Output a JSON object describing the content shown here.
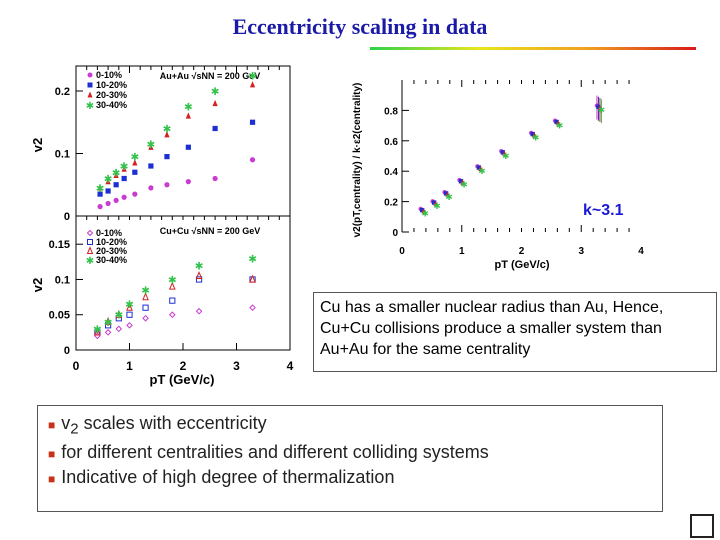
{
  "slide": {
    "title": "Eccentricity scaling in data",
    "note": "Cu has a smaller nuclear radius than Au, Hence, Cu+Cu collisions produce a smaller system than Au+Au for the same centrality",
    "bullets": [
      {
        "pre": "v",
        "sub": "2",
        "post": " scales with eccentricity"
      },
      {
        "pre": "for different centralities and different colliding systems",
        "sub": "",
        "post": ""
      },
      {
        "pre": "Indicative of high degree of thermalization",
        "sub": "",
        "post": ""
      }
    ],
    "k_label": "k~3.1",
    "colors": {
      "title": "#1a1aa6",
      "purple": "#c83ccf",
      "blue": "#1d2fd1",
      "red": "#d62020",
      "green": "#33c24a"
    }
  },
  "chart_data": [
    {
      "id": "auau",
      "type": "scatter",
      "system_label": "Au+Au √sNN = 200 GeV",
      "ylabel": "v2",
      "ylim": [
        0,
        0.24
      ],
      "xlim": [
        0,
        4
      ],
      "yticks": [
        "0",
        "0.1",
        "0.2"
      ],
      "yticks_values": [
        0,
        0.1,
        0.2
      ],
      "series": [
        {
          "name": "0-10%",
          "marker": "circle",
          "color": "#c83ccf",
          "x": [
            0.45,
            0.6,
            0.75,
            0.9,
            1.1,
            1.4,
            1.7,
            2.1,
            2.6,
            3.3
          ],
          "y": [
            0.015,
            0.02,
            0.025,
            0.03,
            0.035,
            0.045,
            0.05,
            0.055,
            0.06,
            0.09
          ]
        },
        {
          "name": "10-20%",
          "marker": "square",
          "color": "#1d2fd1",
          "x": [
            0.45,
            0.6,
            0.75,
            0.9,
            1.1,
            1.4,
            1.7,
            2.1,
            2.6,
            3.3
          ],
          "y": [
            0.035,
            0.04,
            0.05,
            0.06,
            0.07,
            0.08,
            0.095,
            0.11,
            0.14,
            0.15
          ]
        },
        {
          "name": "20-30%",
          "marker": "triangle",
          "color": "#d62020",
          "x": [
            0.45,
            0.6,
            0.75,
            0.9,
            1.1,
            1.4,
            1.7,
            2.1,
            2.6,
            3.3
          ],
          "y": [
            0.045,
            0.055,
            0.065,
            0.075,
            0.085,
            0.11,
            0.13,
            0.16,
            0.18,
            0.21
          ]
        },
        {
          "name": "30-40%",
          "marker": "star",
          "color": "#33c24a",
          "x": [
            0.45,
            0.6,
            0.75,
            0.9,
            1.1,
            1.4,
            1.7,
            2.1,
            2.6,
            3.3
          ],
          "y": [
            0.045,
            0.06,
            0.07,
            0.08,
            0.095,
            0.115,
            0.14,
            0.175,
            0.2,
            0.225
          ]
        }
      ]
    },
    {
      "id": "cucu",
      "type": "scatter",
      "system_label": "Cu+Cu √sNN = 200 GeV",
      "ylabel": "v2",
      "xlabel": "pT (GeV/c)",
      "ylim": [
        0,
        0.19
      ],
      "xlim": [
        0,
        4
      ],
      "yticks": [
        "0",
        "0.05",
        "0.1",
        "0.15"
      ],
      "yticks_values": [
        0,
        0.05,
        0.1,
        0.15
      ],
      "xticks": [
        "0",
        "1",
        "2",
        "3",
        "4"
      ],
      "xticks_values": [
        0,
        1,
        2,
        3,
        4
      ],
      "series": [
        {
          "name": "0-10%",
          "marker": "open-diamond",
          "color": "#c83ccf",
          "x": [
            0.4,
            0.6,
            0.8,
            1.0,
            1.3,
            1.8,
            2.3,
            3.3
          ],
          "y": [
            0.02,
            0.025,
            0.03,
            0.035,
            0.045,
            0.05,
            0.055,
            0.06
          ]
        },
        {
          "name": "10-20%",
          "marker": "open-square",
          "color": "#1d2fd1",
          "x": [
            0.4,
            0.6,
            0.8,
            1.0,
            1.3,
            1.8,
            2.3,
            3.3
          ],
          "y": [
            0.025,
            0.035,
            0.045,
            0.05,
            0.06,
            0.07,
            0.1,
            0.1
          ]
        },
        {
          "name": "20-30%",
          "marker": "open-triangle",
          "color": "#d62020",
          "x": [
            0.4,
            0.6,
            0.8,
            1.0,
            1.3,
            1.8,
            2.3,
            3.3
          ],
          "y": [
            0.025,
            0.04,
            0.05,
            0.06,
            0.075,
            0.09,
            0.105,
            0.1
          ]
        },
        {
          "name": "30-40%",
          "marker": "star",
          "color": "#33c24a",
          "x": [
            0.4,
            0.6,
            0.8,
            1.0,
            1.3,
            1.8,
            2.3,
            3.3
          ],
          "y": [
            0.03,
            0.04,
            0.05,
            0.065,
            0.085,
            0.1,
            0.12,
            0.13
          ]
        }
      ]
    },
    {
      "id": "scaled",
      "type": "scatter",
      "ylabel": "v2(pT,centrality) / k·ε2(centrality)",
      "xlabel": "pT (GeV/c)",
      "xlim": [
        0,
        4
      ],
      "ylim": [
        0,
        1.0
      ],
      "yticks": [
        "0",
        "0.2",
        "0.4",
        "0.6",
        "0.8"
      ],
      "yticks_values": [
        0,
        0.2,
        0.4,
        0.6,
        0.8
      ],
      "xticks": [
        "0",
        "1",
        "2",
        "3",
        "4"
      ],
      "xticks_values": [
        0,
        1,
        2,
        3,
        4
      ],
      "x": [
        0.35,
        0.55,
        0.75,
        1.0,
        1.3,
        1.7,
        2.2,
        2.6,
        3.3
      ],
      "y": [
        0.14,
        0.19,
        0.25,
        0.33,
        0.42,
        0.52,
        0.64,
        0.72,
        0.82
      ],
      "series": [
        {
          "name": "0-10%",
          "color": "#c83ccf"
        },
        {
          "name": "10-20%",
          "color": "#1d2fd1"
        },
        {
          "name": "20-30%",
          "color": "#d62020"
        },
        {
          "name": "30-40%",
          "color": "#33c24a"
        }
      ]
    }
  ]
}
